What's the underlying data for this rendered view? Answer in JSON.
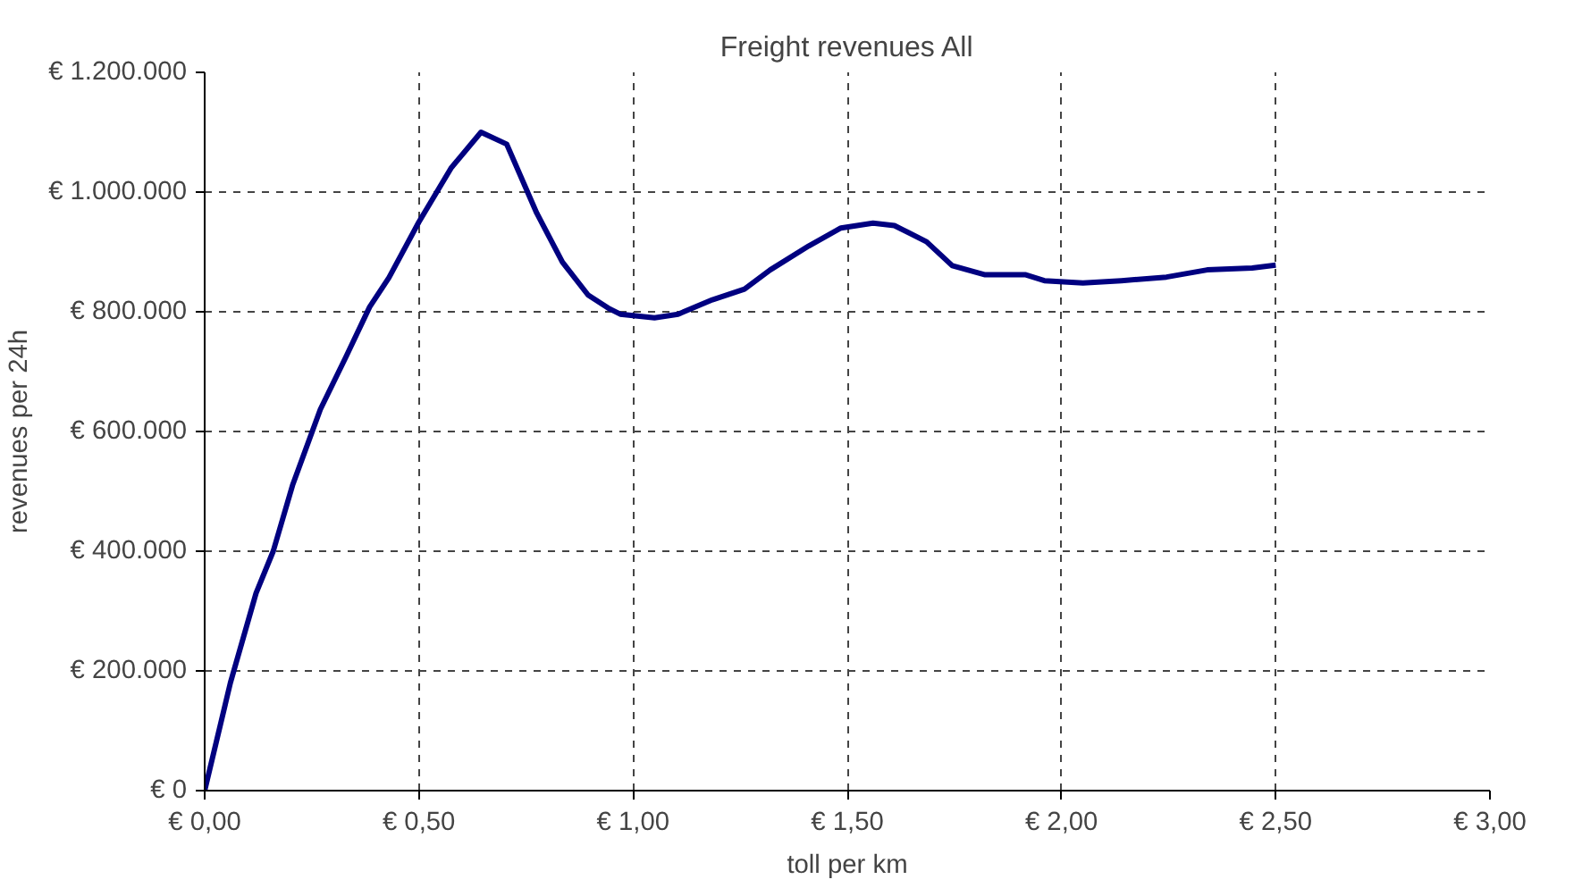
{
  "chart_data": {
    "type": "line",
    "title": "Freight revenues All",
    "xlabel": "toll per km",
    "ylabel": "revenues per 24h",
    "x": [
      0,
      0.06,
      0.12,
      0.16,
      0.205,
      0.27,
      0.33,
      0.385,
      0.43,
      0.5,
      0.575,
      0.645,
      0.705,
      0.775,
      0.835,
      0.895,
      0.945,
      0.97,
      1.05,
      1.105,
      1.185,
      1.26,
      1.32,
      1.41,
      1.485,
      1.56,
      1.61,
      1.685,
      1.745,
      1.82,
      1.915,
      1.96,
      2.05,
      2.14,
      2.245,
      2.34,
      2.445,
      2.5
    ],
    "series": [
      {
        "color": "#000080",
        "values": [
          0,
          180000,
          330000,
          400000,
          510000,
          637000,
          725000,
          808000,
          857000,
          950000,
          1040000,
          1100000,
          1080000,
          965000,
          883000,
          828000,
          805000,
          796000,
          790000,
          796000,
          820000,
          838000,
          870000,
          910000,
          940000,
          948000,
          944000,
          917000,
          877000,
          862000,
          862000,
          852000,
          848000,
          852000,
          858000,
          870000,
          873000,
          878000
        ]
      }
    ],
    "xlim": [
      0,
      3
    ],
    "ylim": [
      0,
      1200000
    ],
    "xticks": [
      {
        "value": 0,
        "label": "€ 0,00"
      },
      {
        "value": 0.5,
        "label": "€ 0,50"
      },
      {
        "value": 1,
        "label": "€ 1,00"
      },
      {
        "value": 1.5,
        "label": "€ 1,50"
      },
      {
        "value": 2,
        "label": "€ 2,00"
      },
      {
        "value": 2.5,
        "label": "€ 2,50"
      },
      {
        "value": 3,
        "label": "€ 3,00"
      }
    ],
    "yticks": [
      {
        "value": 0,
        "label": "€ 0"
      },
      {
        "value": 200000,
        "label": "€ 200.000"
      },
      {
        "value": 400000,
        "label": "€ 400.000"
      },
      {
        "value": 600000,
        "label": "€ 600.000"
      },
      {
        "value": 800000,
        "label": "€ 800.000"
      },
      {
        "value": 1000000,
        "label": "€ 1.000.000"
      },
      {
        "value": 1200000,
        "label": "€ 1.200.000"
      }
    ],
    "grid": true,
    "marker": "none",
    "line_style": "solid"
  }
}
